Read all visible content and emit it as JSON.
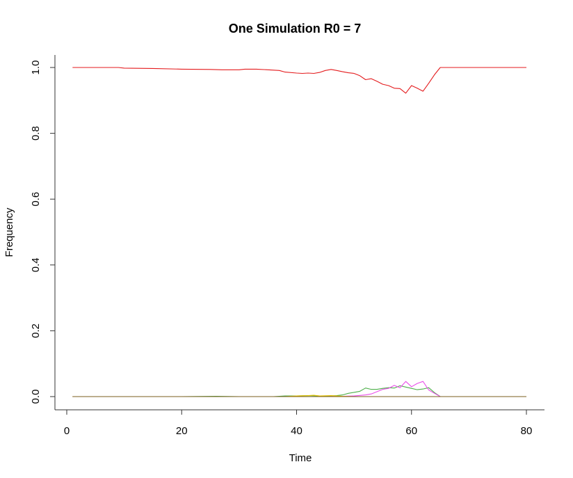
{
  "chart_data": {
    "type": "line",
    "title": "One Simulation R0 = 7",
    "xlabel": "Time",
    "ylabel": "Frequency",
    "xlim": [
      0,
      80
    ],
    "ylim": [
      0,
      1
    ],
    "xticks": [
      0,
      20,
      40,
      60,
      80
    ],
    "yticks": [
      0.0,
      0.2,
      0.4,
      0.6,
      0.8,
      1.0
    ],
    "ytick_labels": [
      "0.0",
      "0.2",
      "0.4",
      "0.6",
      "0.8",
      "1.0"
    ],
    "grid": false,
    "series": [
      {
        "color": "#e41a1c",
        "x": [
          1,
          5,
          9,
          10,
          15,
          20,
          25,
          27,
          30,
          31,
          33,
          35,
          37,
          38,
          40,
          41,
          42,
          43,
          44,
          45,
          46,
          47,
          48,
          49,
          50,
          51,
          52,
          53,
          54,
          55,
          56,
          57,
          58,
          59,
          60,
          61,
          62,
          63,
          64,
          65,
          70,
          75,
          80
        ],
        "y": [
          1.0,
          1.0,
          1.0,
          0.998,
          0.997,
          0.995,
          0.994,
          0.993,
          0.993,
          0.995,
          0.995,
          0.993,
          0.991,
          0.986,
          0.983,
          0.982,
          0.983,
          0.982,
          0.985,
          0.991,
          0.994,
          0.991,
          0.987,
          0.984,
          0.982,
          0.975,
          0.963,
          0.966,
          0.958,
          0.949,
          0.945,
          0.937,
          0.936,
          0.922,
          0.945,
          0.937,
          0.928,
          0.952,
          0.978,
          1.0,
          1.0,
          1.0,
          1.0
        ]
      },
      {
        "color": "#4daf4a",
        "x": [
          1,
          20,
          26,
          30,
          36,
          38,
          40,
          42,
          44,
          46,
          47,
          48,
          49,
          50,
          51,
          52,
          53,
          54,
          55,
          56,
          57,
          58,
          59,
          60,
          61,
          62,
          63,
          64,
          65,
          70,
          80
        ],
        "y": [
          0.0,
          0.0,
          0.001,
          0.0,
          0.0,
          0.002,
          0.002,
          0.003,
          0.002,
          0.002,
          0.003,
          0.005,
          0.01,
          0.013,
          0.016,
          0.026,
          0.022,
          0.022,
          0.025,
          0.027,
          0.026,
          0.033,
          0.029,
          0.025,
          0.021,
          0.023,
          0.027,
          0.012,
          0.0,
          0.0,
          0.0
        ]
      },
      {
        "color": "#e94ee9",
        "x": [
          1,
          45,
          48,
          50,
          52,
          53,
          54,
          55,
          56,
          57,
          58,
          59,
          60,
          61,
          62,
          63,
          64,
          65,
          70,
          80
        ],
        "y": [
          0.0,
          0.0,
          0.001,
          0.002,
          0.005,
          0.008,
          0.015,
          0.022,
          0.025,
          0.034,
          0.027,
          0.046,
          0.03,
          0.04,
          0.046,
          0.02,
          0.01,
          0.0,
          0.0,
          0.0
        ]
      },
      {
        "color": "#e6c200",
        "x": [
          1,
          38,
          40,
          42,
          43,
          44,
          46,
          48,
          50,
          80
        ],
        "y": [
          0.0,
          0.0,
          0.002,
          0.003,
          0.004,
          0.002,
          0.003,
          0.001,
          0.0,
          0.0
        ]
      },
      {
        "color": "#7a5c1e",
        "x": [
          1,
          80
        ],
        "y": [
          0.0,
          0.0
        ]
      }
    ]
  }
}
